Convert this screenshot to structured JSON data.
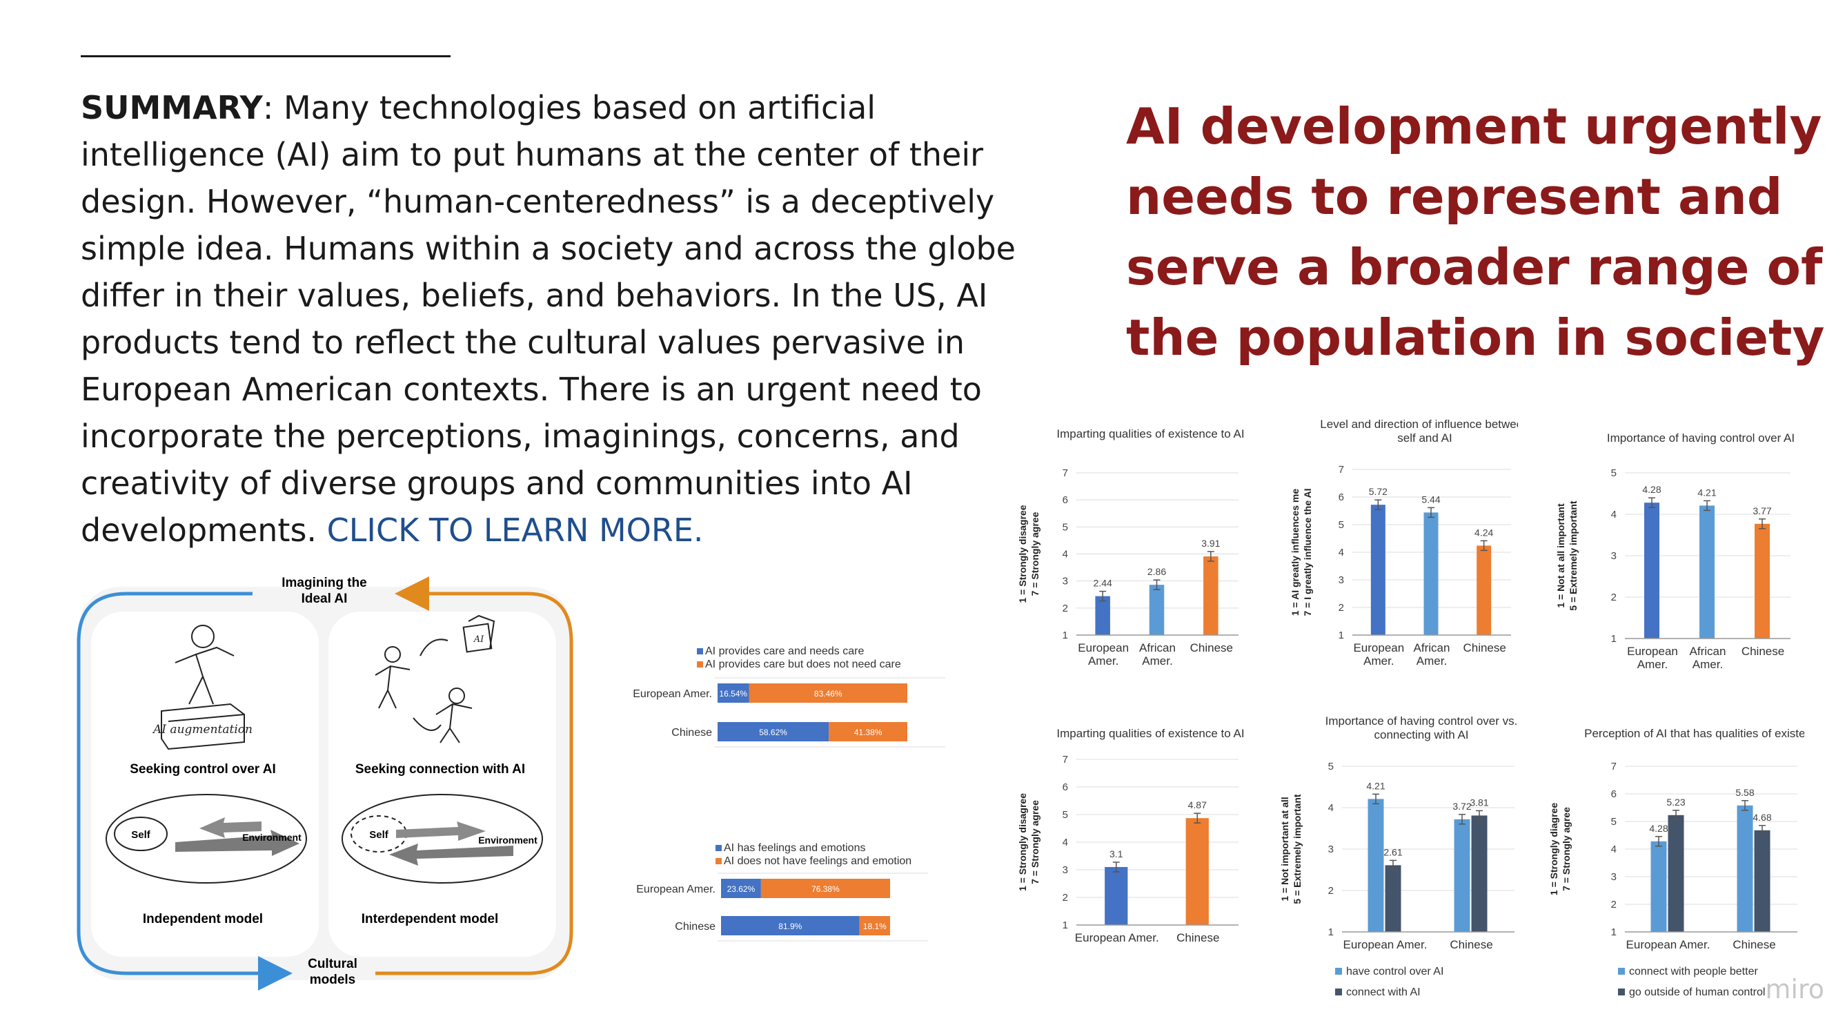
{
  "summary": {
    "label": "SUMMARY",
    "text": ": Many technologies based on artificial intelligence (AI) aim to put humans at the center of their design. However, “human-centeredness” is a deceptively simple idea. Humans within a society and across the globe differ in their values, beliefs, and behaviors. In the US, AI products tend to reflect the cultural values pervasive in European American contexts. There is an urgent need to incorporate the perceptions, imaginings, concerns, and creativity of diverse groups and communities into AI developments.",
    "link": "CLICK TO LEARN MORE."
  },
  "headline": "AI development urgently needs to represent and serve a broader range of the population in society",
  "watermark": "miro",
  "colors": {
    "dark_blue": "#4472c4",
    "mid_blue": "#5b9bd5",
    "orange": "#ed7d31",
    "navy": "#44546a",
    "headline_red": "#8b1a1a",
    "link_blue": "#1f4e8c"
  },
  "diagram": {
    "top_label": "Imagining the Ideal AI",
    "bottom_label": "Cultural models",
    "left_panel": {
      "sketch_text": "AI augmentation",
      "caption": "Seeking control over AI",
      "self": "Self",
      "env": "Environment",
      "model": "Independent model"
    },
    "right_panel": {
      "sketch_text": "AI",
      "caption": "Seeking connection with AI",
      "self": "Self",
      "env": "Environment",
      "model": "Interdependent model"
    }
  },
  "chart_data": [
    {
      "type": "bar",
      "title": "Imparting qualities of existence to AI",
      "categories": [
        "European Amer.",
        "African Amer.",
        "Chinese"
      ],
      "values": [
        2.44,
        2.86,
        3.91
      ],
      "colors": [
        "#4472c4",
        "#5b9bd5",
        "#ed7d31"
      ],
      "ylabel": [
        "1 = Strongly disagree",
        "7 = Strongly agree"
      ],
      "ylim": [
        1,
        7
      ]
    },
    {
      "type": "bar",
      "title": "Level and direction of influence between self and AI",
      "categories": [
        "European Amer.",
        "African Amer.",
        "Chinese"
      ],
      "values": [
        5.72,
        5.44,
        4.24
      ],
      "colors": [
        "#4472c4",
        "#5b9bd5",
        "#ed7d31"
      ],
      "ylabel": [
        "1 = AI greatly influences me",
        "7 = I greatly influence the AI"
      ],
      "ylim": [
        1,
        7
      ]
    },
    {
      "type": "bar",
      "title": "Importance of having control over AI",
      "categories": [
        "European Amer.",
        "African Amer.",
        "Chinese"
      ],
      "values": [
        4.28,
        4.21,
        3.77
      ],
      "colors": [
        "#4472c4",
        "#5b9bd5",
        "#ed7d31"
      ],
      "ylabel": [
        "1 = Not at all important",
        "5 = Extremely important"
      ],
      "ylim": [
        1,
        5
      ]
    },
    {
      "type": "bar",
      "title": "Imparting qualities of existence to AI",
      "categories": [
        "European Amer.",
        "Chinese"
      ],
      "values": [
        3.1,
        4.87
      ],
      "colors": [
        "#4472c4",
        "#ed7d31"
      ],
      "ylabel": [
        "1 = Strongly disagree",
        "7 = Strongly agree"
      ],
      "ylim": [
        1,
        7
      ]
    },
    {
      "type": "bar",
      "title": "Importance of having control over vs. connecting with AI",
      "categories": [
        "European Amer.",
        "Chinese"
      ],
      "series": [
        {
          "name": "have control over AI",
          "values": [
            4.21,
            3.72
          ],
          "color": "#5b9bd5"
        },
        {
          "name": "connect with AI",
          "values": [
            2.61,
            3.81
          ],
          "color": "#44546a"
        }
      ],
      "ylabel": [
        "1 = Not important at all",
        "5 = Extremely important"
      ],
      "ylim": [
        1,
        5
      ]
    },
    {
      "type": "bar",
      "title": "Perception of AI that has qualities of existence",
      "categories": [
        "European Amer.",
        "Chinese"
      ],
      "series": [
        {
          "name": "connect with people better",
          "values": [
            4.28,
            5.58
          ],
          "color": "#5b9bd5"
        },
        {
          "name": "go outside of human control",
          "values": [
            5.23,
            4.68
          ],
          "color": "#44546a"
        }
      ],
      "ylabel": [
        "1 = Strongly diagree",
        "7 = Strongly agree"
      ],
      "ylim": [
        1,
        7
      ]
    },
    {
      "type": "bar",
      "stacked": true,
      "categories": [
        "European Amer.",
        "Chinese"
      ],
      "series": [
        {
          "name": "AI provides care and needs care",
          "values": [
            16.54,
            58.62
          ],
          "color": "#4472c4"
        },
        {
          "name": "AI provides care but does not need care",
          "values": [
            83.46,
            41.38
          ],
          "color": "#ed7d31"
        }
      ],
      "value_labels": [
        [
          "16.54%",
          "83.46%"
        ],
        [
          "58.62%",
          "41.38%"
        ]
      ]
    },
    {
      "type": "bar",
      "stacked": true,
      "categories": [
        "European Amer.",
        "Chinese"
      ],
      "series": [
        {
          "name": "AI has feelings and emotions",
          "values": [
            23.62,
            81.9
          ],
          "color": "#4472c4"
        },
        {
          "name": "AI does not have feelings and emotion",
          "values": [
            76.38,
            18.1
          ],
          "color": "#ed7d31"
        }
      ],
      "value_labels": [
        [
          "23.62%",
          "76.38%"
        ],
        [
          "81.9%",
          "18.1%"
        ]
      ]
    }
  ]
}
